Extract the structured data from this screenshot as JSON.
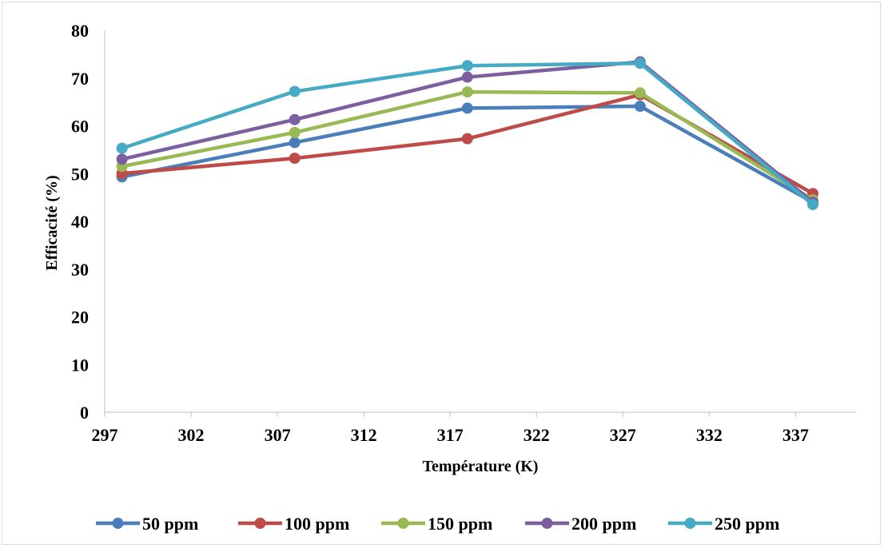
{
  "chart_data": {
    "type": "line",
    "title": "",
    "xlabel": "Température (K)",
    "ylabel": "Efficacité (%)",
    "xlim": [
      297,
      340.5
    ],
    "ylim": [
      0,
      80
    ],
    "xticks": [
      297,
      302,
      307,
      312,
      317,
      322,
      327,
      332,
      337
    ],
    "yticks": [
      0,
      10,
      20,
      30,
      40,
      50,
      60,
      70,
      80
    ],
    "grid": false,
    "legend_position": "bottom",
    "x": [
      298,
      308,
      318,
      328,
      338
    ],
    "series": [
      {
        "name": "50 ppm",
        "color": "#4a7ebb",
        "values": [
          49.3,
          56.5,
          63.7,
          64.1,
          44.0
        ]
      },
      {
        "name": "100 ppm",
        "color": "#be4b48",
        "values": [
          50.0,
          53.2,
          57.3,
          66.5,
          45.8
        ]
      },
      {
        "name": "150 ppm",
        "color": "#98b954",
        "values": [
          51.5,
          58.6,
          67.1,
          66.9,
          44.5
        ]
      },
      {
        "name": "200 ppm",
        "color": "#7d5fa0",
        "values": [
          53.0,
          61.3,
          70.2,
          73.4,
          44.0
        ]
      },
      {
        "name": "250 ppm",
        "color": "#46aac5",
        "values": [
          55.3,
          67.2,
          72.6,
          73.1,
          43.5
        ]
      }
    ]
  }
}
